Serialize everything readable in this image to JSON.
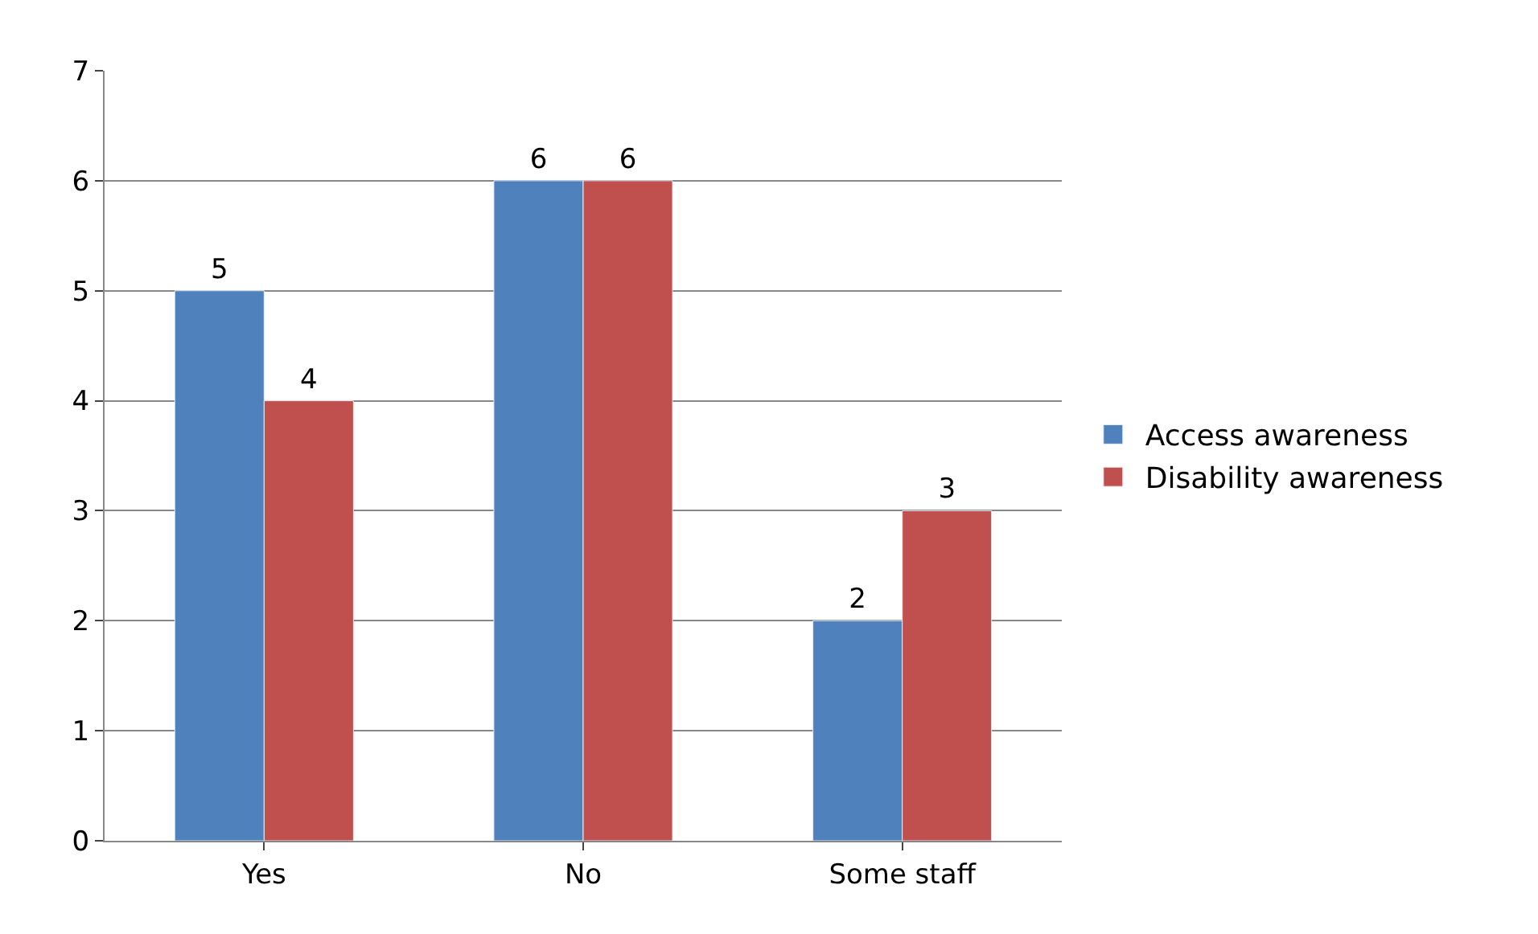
{
  "chart_data": {
    "type": "bar",
    "categories": [
      "Yes",
      "No",
      "Some staff"
    ],
    "series": [
      {
        "name": "Access awareness",
        "color": "#4f81bd",
        "values": [
          5,
          6,
          2
        ]
      },
      {
        "name": "Disability awareness",
        "color": "#c0504d",
        "values": [
          4,
          6,
          3
        ]
      }
    ],
    "ylim": [
      0,
      7
    ],
    "yticks": [
      0,
      1,
      2,
      3,
      4,
      5,
      6,
      7
    ],
    "grid": "y",
    "legend": "right",
    "data_labels": true
  }
}
